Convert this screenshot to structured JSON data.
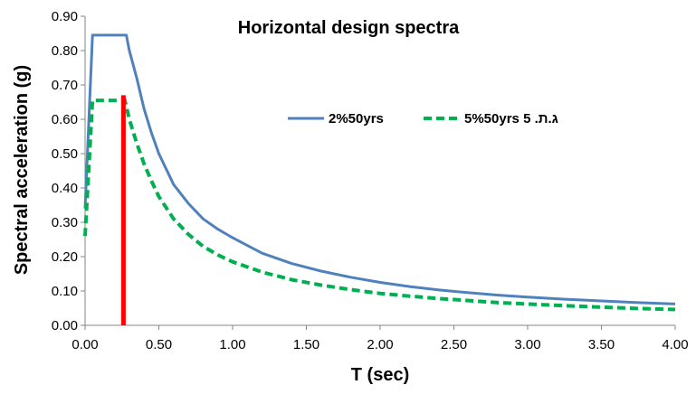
{
  "chart_data": {
    "type": "line",
    "title": "Horizontal design spectra",
    "xlabel": "T (sec)",
    "ylabel": "Spectral acceleration (g)",
    "xlim": [
      0,
      4
    ],
    "ylim": [
      0,
      0.9
    ],
    "x_ticks": [
      "0.00",
      "0.50",
      "1.00",
      "1.50",
      "2.00",
      "2.50",
      "3.00",
      "3.50",
      "4.00"
    ],
    "y_ticks": [
      "0.00",
      "0.10",
      "0.20",
      "0.30",
      "0.40",
      "0.50",
      "0.60",
      "0.70",
      "0.80",
      "0.90"
    ],
    "legend_position": "top-right",
    "series": [
      {
        "name": "2%50yrs",
        "color": "#4f81bd",
        "style": "solid",
        "points": [
          [
            0,
            0.34
          ],
          [
            0.05,
            0.845
          ],
          [
            0.1,
            0.845
          ],
          [
            0.2,
            0.845
          ],
          [
            0.28,
            0.845
          ],
          [
            0.3,
            0.8
          ],
          [
            0.35,
            0.72
          ],
          [
            0.4,
            0.63
          ],
          [
            0.45,
            0.56
          ],
          [
            0.5,
            0.5
          ],
          [
            0.6,
            0.41
          ],
          [
            0.7,
            0.355
          ],
          [
            0.8,
            0.31
          ],
          [
            0.9,
            0.28
          ],
          [
            1.0,
            0.255
          ],
          [
            1.2,
            0.21
          ],
          [
            1.4,
            0.18
          ],
          [
            1.6,
            0.158
          ],
          [
            1.8,
            0.14
          ],
          [
            2.0,
            0.125
          ],
          [
            2.2,
            0.113
          ],
          [
            2.4,
            0.103
          ],
          [
            2.6,
            0.095
          ],
          [
            2.8,
            0.088
          ],
          [
            3.0,
            0.082
          ],
          [
            3.25,
            0.076
          ],
          [
            3.5,
            0.071
          ],
          [
            3.75,
            0.066
          ],
          [
            4.0,
            0.062
          ]
        ]
      },
      {
        "name": "5%50yrs ג.ת. 5",
        "color": "#00b050",
        "style": "dashed",
        "points": [
          [
            0,
            0.26
          ],
          [
            0.05,
            0.655
          ],
          [
            0.1,
            0.655
          ],
          [
            0.2,
            0.655
          ],
          [
            0.27,
            0.655
          ],
          [
            0.3,
            0.6
          ],
          [
            0.35,
            0.53
          ],
          [
            0.4,
            0.47
          ],
          [
            0.45,
            0.42
          ],
          [
            0.5,
            0.375
          ],
          [
            0.6,
            0.31
          ],
          [
            0.7,
            0.265
          ],
          [
            0.8,
            0.23
          ],
          [
            0.9,
            0.205
          ],
          [
            1.0,
            0.185
          ],
          [
            1.2,
            0.155
          ],
          [
            1.4,
            0.133
          ],
          [
            1.6,
            0.117
          ],
          [
            1.8,
            0.104
          ],
          [
            2.0,
            0.093
          ],
          [
            2.2,
            0.085
          ],
          [
            2.4,
            0.078
          ],
          [
            2.6,
            0.072
          ],
          [
            2.8,
            0.066
          ],
          [
            3.0,
            0.062
          ],
          [
            3.25,
            0.057
          ],
          [
            3.5,
            0.053
          ],
          [
            3.75,
            0.049
          ],
          [
            4.0,
            0.046
          ]
        ]
      },
      {
        "color": "#ff0000",
        "style": "solid-thick",
        "points": [
          [
            0.26,
            0
          ],
          [
            0.26,
            0.67
          ]
        ]
      }
    ]
  }
}
